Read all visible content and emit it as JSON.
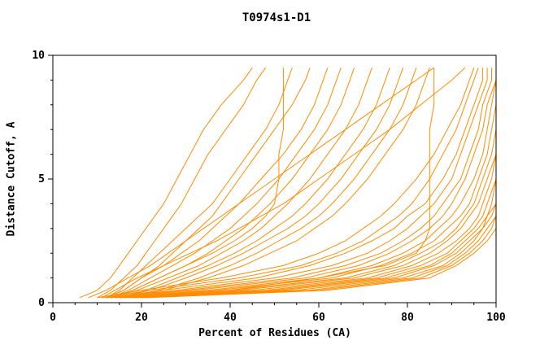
{
  "chart_data": {
    "type": "line",
    "title": "T0974s1-D1",
    "line_color": "#ff8c00",
    "frame_color": "#000000",
    "grid": false,
    "legend": "none",
    "x_axis": {
      "label": "Percent of Residues (CA)",
      "min": 0,
      "max": 100,
      "major_ticks": [
        0,
        20,
        40,
        60,
        80,
        100
      ],
      "minor_step": 5
    },
    "y_axis": {
      "label": "Distance Cutoff, A",
      "min": 0,
      "max": 10,
      "major_ticks": [
        0,
        5,
        10
      ],
      "minor_step": 1
    },
    "y_levels": [
      0.2,
      0.5,
      1,
      1.5,
      2,
      2.5,
      3,
      3.5,
      4,
      5,
      6,
      7,
      8,
      9,
      9.5
    ],
    "series_x": [
      [
        6,
        10,
        13,
        15,
        17,
        19,
        21,
        23,
        25,
        28,
        31,
        34,
        38,
        43,
        45
      ],
      [
        10,
        13,
        16,
        19,
        21,
        23,
        25,
        27,
        29,
        32,
        35,
        39,
        43,
        46,
        48
      ],
      [
        12,
        15,
        18,
        21,
        24,
        27,
        30,
        33,
        36,
        40,
        44,
        48,
        51,
        53,
        54
      ],
      [
        12,
        16,
        20,
        24,
        27,
        30,
        33,
        36,
        38,
        42,
        46,
        50,
        54,
        57,
        58
      ],
      [
        13,
        18,
        24,
        30,
        36,
        41,
        45,
        48,
        50,
        51,
        51,
        52,
        52,
        52,
        52
      ],
      [
        12,
        16,
        20,
        25,
        29,
        33,
        36,
        39,
        42,
        47,
        52,
        56,
        59,
        61,
        62
      ],
      [
        13,
        17,
        22,
        27,
        32,
        36,
        40,
        43,
        46,
        51,
        55,
        59,
        62,
        64,
        65
      ],
      [
        14,
        18,
        24,
        30,
        35,
        39,
        43,
        46,
        49,
        54,
        58,
        62,
        65,
        67,
        68
      ],
      [
        13,
        19,
        26,
        33,
        38,
        43,
        47,
        50,
        53,
        58,
        62,
        66,
        69,
        71,
        72
      ],
      [
        15,
        21,
        28,
        35,
        41,
        46,
        50,
        54,
        57,
        62,
        66,
        70,
        73,
        75,
        76
      ],
      [
        14,
        22,
        30,
        37,
        43,
        48,
        53,
        57,
        60,
        65,
        69,
        73,
        76,
        78,
        79
      ],
      [
        16,
        24,
        33,
        40,
        46,
        51,
        56,
        60,
        63,
        68,
        72,
        76,
        79,
        81,
        82
      ],
      [
        15,
        25,
        35,
        43,
        49,
        55,
        59,
        63,
        66,
        71,
        75,
        79,
        82,
        84,
        85
      ],
      [
        20,
        40,
        60,
        75,
        82,
        84,
        85,
        85,
        85,
        85,
        85,
        85,
        86,
        86,
        86
      ],
      [
        10,
        20,
        38,
        52,
        60,
        66,
        70,
        74,
        77,
        82,
        86,
        89,
        92,
        94,
        95
      ],
      [
        11,
        22,
        42,
        56,
        64,
        70,
        74,
        78,
        81,
        85,
        88,
        91,
        93,
        95,
        96
      ],
      [
        12,
        25,
        46,
        58,
        66,
        72,
        77,
        80,
        84,
        88,
        91,
        93,
        95,
        97,
        97
      ],
      [
        12,
        28,
        50,
        63,
        71,
        76,
        80,
        83,
        86,
        90,
        92,
        94,
        96,
        98,
        98
      ],
      [
        13,
        30,
        54,
        66,
        74,
        79,
        83,
        86,
        88,
        92,
        94,
        96,
        97,
        99,
        99
      ],
      [
        13,
        32,
        57,
        69,
        76,
        81,
        85,
        88,
        90,
        93,
        95,
        97,
        98,
        100,
        100
      ],
      [
        14,
        35,
        60,
        72,
        79,
        84,
        87,
        90,
        92,
        95,
        97,
        98,
        99,
        100,
        100
      ],
      [
        14,
        37,
        63,
        74,
        81,
        86,
        89,
        92,
        94,
        96,
        98,
        99,
        100,
        100,
        100
      ],
      [
        15,
        40,
        66,
        77,
        83,
        88,
        91,
        93,
        95,
        97,
        99,
        100,
        100,
        100,
        100
      ],
      [
        15,
        42,
        68,
        79,
        85,
        89,
        92,
        94,
        96,
        98,
        100,
        100,
        100,
        100,
        100
      ],
      [
        16,
        45,
        71,
        81,
        87,
        91,
        94,
        96,
        97,
        99,
        100,
        100,
        100,
        100,
        100
      ],
      [
        16,
        48,
        73,
        83,
        89,
        92,
        95,
        97,
        98,
        100,
        100,
        100,
        100,
        100,
        100
      ],
      [
        17,
        50,
        75,
        85,
        90,
        93,
        96,
        98,
        99,
        100,
        100,
        100,
        100,
        100,
        100
      ],
      [
        18,
        52,
        77,
        86,
        91,
        94,
        97,
        98,
        100,
        100,
        100,
        100,
        100,
        100,
        100
      ],
      [
        18,
        55,
        79,
        88,
        92,
        95,
        97,
        99,
        100,
        100,
        100,
        100,
        100,
        100,
        100
      ],
      [
        19,
        58,
        81,
        89,
        93,
        96,
        98,
        100,
        100,
        100,
        100,
        100,
        100,
        100,
        100
      ],
      [
        20,
        60,
        83,
        90,
        94,
        97,
        99,
        100,
        100,
        100,
        100,
        100,
        100,
        100,
        100
      ],
      [
        21,
        62,
        85,
        91,
        95,
        98,
        100,
        100,
        100,
        100,
        100,
        100,
        100,
        100,
        100
      ],
      [
        8,
        12,
        17,
        22,
        26,
        30,
        34,
        38,
        42,
        50,
        58,
        66,
        74,
        82,
        86
      ],
      [
        11,
        14,
        19,
        25,
        31,
        37,
        42,
        47,
        52,
        60,
        68,
        76,
        83,
        90,
        93
      ]
    ]
  }
}
